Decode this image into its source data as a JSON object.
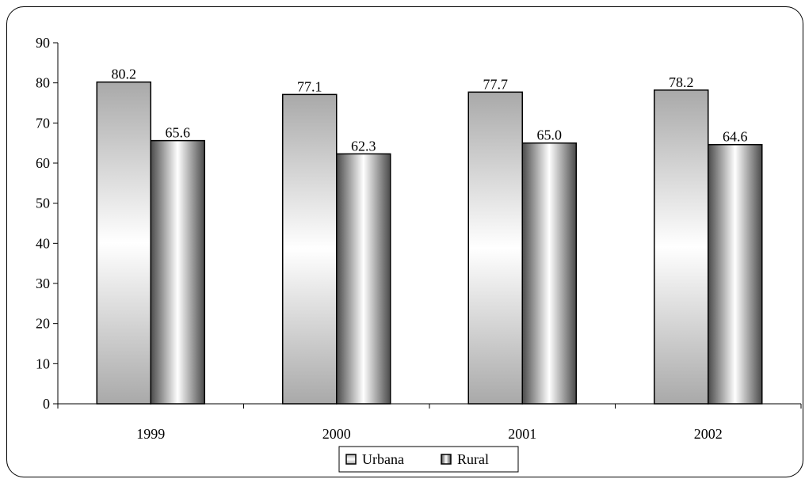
{
  "chart_data": {
    "type": "bar",
    "categories": [
      "1999",
      "2000",
      "2001",
      "2002"
    ],
    "series": [
      {
        "name": "Urbana",
        "values": [
          80.2,
          77.1,
          77.7,
          78.2
        ],
        "labels": [
          "80.2",
          "77.1",
          "77.7",
          "78.2"
        ]
      },
      {
        "name": "Rural",
        "values": [
          65.6,
          62.3,
          65.0,
          64.6
        ],
        "labels": [
          "65.6",
          "62.3",
          "65.0",
          "64.6"
        ]
      }
    ],
    "title": "",
    "xlabel": "",
    "ylabel": "",
    "ylim": [
      0,
      90
    ],
    "yticks": [
      "0",
      "10",
      "20",
      "30",
      "40",
      "50",
      "60",
      "70",
      "80",
      "90"
    ],
    "legend_position": "bottom",
    "grid": false,
    "colors": {
      "urbana_edge": "#a9a9a9",
      "urbana_mid": "#ffffff",
      "rural_edge": "#4a4a4a",
      "rural_mid": "#ffffff"
    }
  }
}
